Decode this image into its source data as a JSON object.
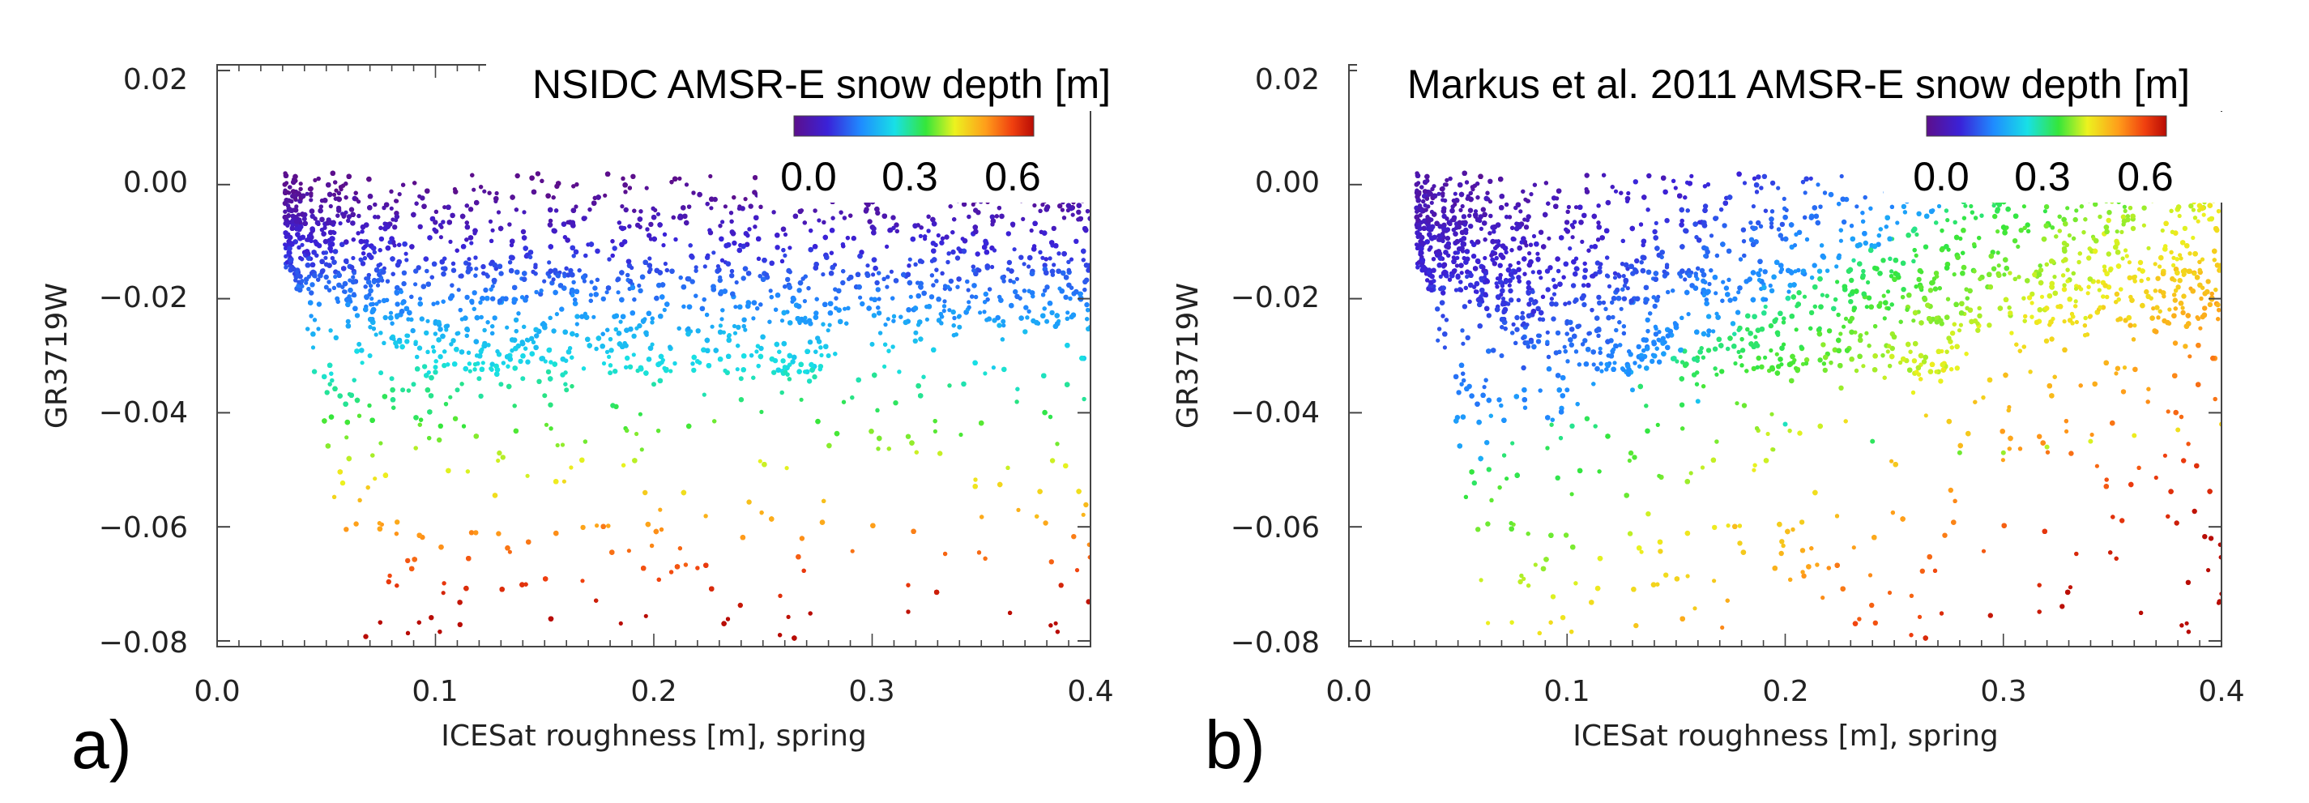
{
  "chart_data": [
    {
      "type": "scatter",
      "panel_label": "a)",
      "title": "NSIDC AMSR-E snow depth [m]",
      "xlabel": "ICESat roughness [m], spring",
      "ylabel": "GR3719W",
      "xlim": [
        0.0,
        0.4
      ],
      "ylim": [
        -0.081,
        0.021
      ],
      "xticks": [
        "0.0",
        "0.1",
        "0.2",
        "0.3",
        "0.4"
      ],
      "yticks": [
        "0.02",
        "0.00",
        "−0.02",
        "−0.04",
        "−0.06",
        "−0.08"
      ],
      "colorbar": {
        "range": [
          0.0,
          0.7
        ],
        "tick_labels": [
          "0.0",
          "0.3",
          "0.6"
        ],
        "colormap": "rainbow"
      },
      "color_by": "y",
      "series": [
        {
          "x": [
            0.031,
            0.035,
            0.04,
            0.045,
            0.05,
            0.05,
            0.055,
            0.06,
            0.065,
            0.07,
            0.075,
            0.08,
            0.085,
            0.09,
            0.1,
            0.11,
            0.12,
            0.13,
            0.14,
            0.15,
            0.16,
            0.18,
            0.2,
            0.22,
            0.24,
            0.26,
            0.28,
            0.3,
            0.32,
            0.34,
            0.36,
            0.38,
            0.4
          ],
          "y": [
            0.0,
            -0.002,
            -0.006,
            -0.01,
            -0.014,
            -0.018,
            -0.02,
            -0.024,
            -0.028,
            -0.03,
            -0.033,
            -0.034,
            -0.036,
            -0.035,
            -0.032,
            -0.036,
            -0.034,
            -0.035,
            -0.034,
            -0.037,
            -0.036,
            -0.033,
            -0.035,
            -0.031,
            -0.034,
            -0.032,
            -0.03,
            -0.028,
            -0.026,
            -0.025,
            -0.024,
            -0.024,
            -0.025
          ]
        }
      ],
      "summary": {
        "dense_core_y_range": [
          -0.035,
          0.002
        ],
        "sparse_points_y_min": -0.08
      }
    },
    {
      "type": "scatter",
      "panel_label": "b)",
      "title": "Markus et al. 2011 AMSR-E snow depth [m]",
      "xlabel": "ICESat roughness [m], spring",
      "ylabel": "GR3719W",
      "xlim": [
        0.0,
        0.4
      ],
      "ylim": [
        -0.081,
        0.021
      ],
      "xticks": [
        "0.0",
        "0.1",
        "0.2",
        "0.3",
        "0.4"
      ],
      "yticks": [
        "0.02",
        "0.00",
        "−0.02",
        "−0.04",
        "−0.06",
        "−0.08"
      ],
      "colorbar": {
        "range": [
          0.0,
          0.7
        ],
        "tick_labels": [
          "0.0",
          "0.3",
          "0.6"
        ],
        "colormap": "rainbow"
      },
      "color_by": "snow_depth_increasing_with_x_and_decreasing_y",
      "series": [
        {
          "x": [
            0.031,
            0.05,
            0.07,
            0.1,
            0.13,
            0.16,
            0.2,
            0.24,
            0.28,
            0.3,
            0.32,
            0.34,
            0.36,
            0.38,
            0.4
          ],
          "y": [
            0.0,
            -0.016,
            -0.03,
            -0.036,
            -0.036,
            -0.038,
            -0.042,
            -0.045,
            -0.047,
            -0.047,
            -0.046,
            -0.045,
            -0.044,
            -0.043,
            -0.042
          ]
        }
      ],
      "summary": {
        "diagonal_boundary": "from (0.1, -0.04) to (0.28, -0.003)",
        "sparse_points_y_min": -0.08
      }
    }
  ]
}
